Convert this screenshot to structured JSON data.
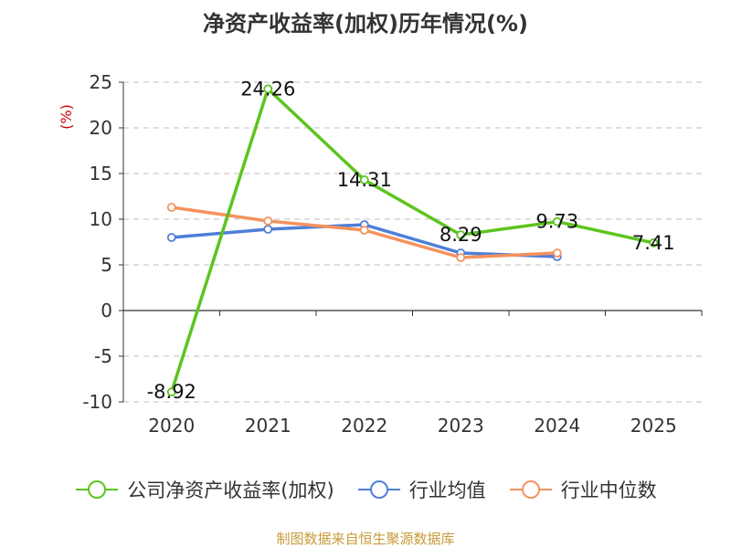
{
  "chart_data": {
    "type": "line",
    "title": "净资产收益率(加权)历年情况(%)",
    "ylabel": "(%)",
    "xlabel": "",
    "categories": [
      "2020",
      "2021",
      "2022",
      "2023",
      "2024",
      "2025"
    ],
    "ylim": [
      -10,
      25
    ],
    "yticks": [
      25,
      20,
      15,
      10,
      5,
      0,
      -5,
      -10
    ],
    "grid": true,
    "legend_position": "bottom",
    "series": [
      {
        "name": "公司净资产收益率(加权)",
        "color": "#5cc41f",
        "values": [
          -8.92,
          24.26,
          14.31,
          8.29,
          9.73,
          7.41
        ],
        "labels": [
          "-8.92",
          "24.26",
          "14.31",
          "8.29",
          "9.73",
          "7.41"
        ]
      },
      {
        "name": "行业均值",
        "color": "#4e7fd8",
        "values": [
          8.0,
          8.9,
          9.4,
          6.3,
          5.9,
          null
        ]
      },
      {
        "name": "行业中位数",
        "color": "#f5925e",
        "values": [
          11.3,
          9.8,
          8.8,
          5.8,
          6.3,
          null
        ]
      }
    ]
  },
  "source": "制图数据来自恒生聚源数据库"
}
